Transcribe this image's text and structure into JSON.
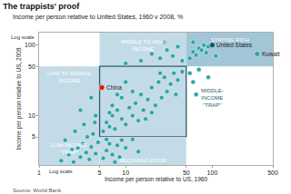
{
  "chart_data": {
    "type": "scatter",
    "title": "The trappists' proof",
    "subtitle": "Income per person relative to United States, 1960 v 2008, %",
    "x_label": "Income per person relative to US, 1960",
    "y_label": "Income per person relative to US, 2008",
    "source": "Source: World Bank",
    "axis_notes": {
      "x": "Log scale",
      "y": "Log scale"
    },
    "log": true,
    "grid": false,
    "xlim": [
      1,
      500
    ],
    "ylim": [
      2,
      150
    ],
    "xticks": [
      1,
      5,
      10,
      50,
      100,
      500
    ],
    "yticks": [
      5,
      10,
      50,
      100
    ],
    "color": "#2aa5a8",
    "x": [
      1.8,
      2.2,
      2.5,
      2.8,
      3,
      3.2,
      3.5,
      3.8,
      4,
      4.2,
      4.5,
      2.6,
      3.3,
      4.8,
      2,
      3.6,
      4.4,
      2.4,
      5.5,
      6,
      6.5,
      7,
      8,
      9,
      10,
      12,
      6,
      7.5,
      14,
      8.5,
      5.5,
      6,
      6.5,
      7,
      7.5,
      8,
      9,
      10,
      11,
      12,
      13,
      14,
      15,
      16,
      18,
      20,
      22,
      24,
      26,
      28,
      30,
      33,
      36,
      40,
      45,
      12,
      9,
      7,
      10,
      6.5,
      17,
      20,
      25,
      8,
      38,
      10,
      15,
      20,
      25,
      30,
      35,
      40,
      45,
      28,
      55,
      60,
      65,
      70,
      75,
      80,
      85,
      90,
      60,
      110,
      55,
      60,
      70,
      65,
      90,
      3,
      4,
      4.5,
      330
    ],
    "y": [
      2.3,
      2.8,
      2.2,
      3.5,
      2.6,
      4,
      3,
      2.4,
      3.6,
      5.5,
      2.9,
      6,
      7.5,
      4.2,
      4.5,
      5,
      8,
      3.3,
      2.5,
      3.2,
      4,
      2.8,
      3.8,
      4.5,
      3.5,
      4.6,
      4.6,
      2.2,
      3.1,
      2.6,
      6,
      8,
      7,
      10,
      6.5,
      12,
      9,
      7.5,
      13,
      10,
      15,
      8.5,
      20,
      12,
      17,
      25,
      14,
      30,
      18,
      35,
      22,
      28,
      40,
      32,
      42,
      22,
      18,
      14,
      30,
      11,
      9,
      11,
      40,
      20,
      20,
      55,
      60,
      75,
      65,
      85,
      70,
      95,
      60,
      110,
      65,
      80,
      72,
      90,
      85,
      100,
      78,
      95,
      110,
      70,
      40,
      30,
      45,
      20,
      35,
      12,
      18,
      10,
      75
    ],
    "highlights": [
      {
        "label": "China",
        "x": 5.3,
        "y": 25,
        "color": "#e3120b"
      },
      {
        "label": "United States",
        "x": 100,
        "y": 100,
        "color": "#0b5566"
      },
      {
        "label": "Kuwait",
        "x": 330,
        "y": 75,
        "color": "#2aa5a8"
      }
    ],
    "regions": [
      {
        "x": [
          5,
          50
        ],
        "y": [
          50,
          150
        ],
        "color": "#c3dbe6"
      },
      {
        "x": [
          50,
          500
        ],
        "y": [
          50,
          150
        ],
        "color": "#a3c6d6"
      },
      {
        "x": [
          1,
          5
        ],
        "y": [
          5,
          50
        ],
        "color": "#c3dbe6"
      },
      {
        "x": [
          5,
          50
        ],
        "y": [
          5,
          50
        ],
        "color": "#c3dbe6",
        "line_style": "solid"
      },
      {
        "x": [
          1,
          5
        ],
        "y": [
          2,
          5
        ],
        "color": "#c3dbe6"
      },
      {
        "x": [
          5,
          50
        ],
        "y": [
          2,
          5
        ],
        "color": "#c3dbe6"
      }
    ],
    "annotations": [
      {
        "text": "MIDDLE TO HIGH\nINCOME",
        "x": 16,
        "y": 100,
        "color": "#ffffff"
      },
      {
        "text": "STAYING RICH",
        "x": 160,
        "y": 120,
        "color": "#ffffff"
      },
      {
        "text": "LOW TO MIDDLE\nINCOME",
        "x": 2.2,
        "y": 35,
        "color": "#ffffff"
      },
      {
        "text": "LOW-INCOME\n\"TRAP\"",
        "x": 2.2,
        "y": 3.4,
        "color": "#ffffff"
      },
      {
        "text": "MIDDLE-\nINCOME\n\"TRAP\"",
        "x": 100,
        "y": 18,
        "color": "#2b5d6e"
      },
      {
        "text": "BECOMING POOR",
        "x": 16,
        "y": 2.3,
        "color": "#ffffff"
      }
    ]
  }
}
